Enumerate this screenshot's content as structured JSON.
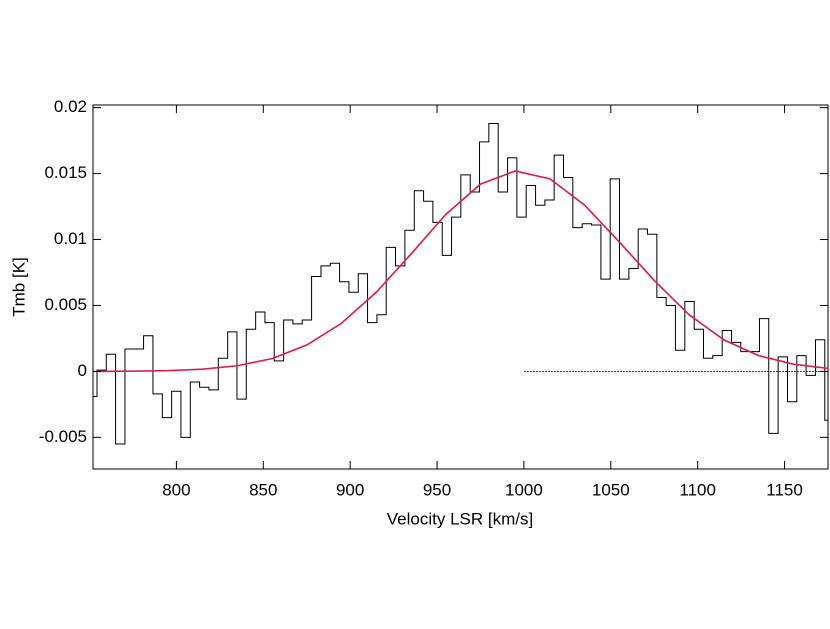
{
  "chart_data": {
    "type": "step",
    "x_label": "Velocity LSR [km/s]",
    "y_label": "Tmb [K]",
    "xlim": [
      752,
      1175
    ],
    "ylim": [
      -0.0074,
      0.0202
    ],
    "xticks": [
      800,
      850,
      900,
      950,
      1000,
      1050,
      1100,
      1150
    ],
    "yticks": [
      -0.005,
      0,
      0.005,
      0.01,
      0.015,
      0.02
    ],
    "series": [
      {
        "type": "step",
        "color": "#000000",
        "x": [
          751.6,
          757.0,
          762.3,
          767.7,
          773.1,
          778.4,
          783.8,
          789.2,
          794.6,
          799.9,
          805.3,
          810.7,
          816.0,
          821.4,
          826.8,
          832.2,
          837.5,
          842.9,
          848.3,
          853.6,
          859.0,
          864.4,
          869.7,
          875.1,
          880.5,
          885.9,
          891.2,
          896.6,
          902.0,
          907.3,
          912.7,
          918.1,
          923.4,
          928.8,
          934.2,
          939.6,
          944.9,
          950.3,
          955.7,
          961.0,
          966.4,
          971.8,
          977.1,
          982.5,
          987.9,
          993.3,
          998.6,
          1004.0,
          1009.4,
          1014.7,
          1020.1,
          1025.5,
          1030.8,
          1036.2,
          1041.6,
          1047.0,
          1052.3,
          1057.7,
          1063.1,
          1068.4,
          1073.8,
          1079.2,
          1084.5,
          1089.9,
          1095.3,
          1100.7,
          1106.0,
          1111.4,
          1116.8,
          1122.1,
          1127.5,
          1132.9,
          1138.2,
          1143.6,
          1149.0,
          1154.4,
          1159.7,
          1165.1,
          1170.5,
          1175.8
        ],
        "values": [
          -0.0019,
          0.0001,
          0.0013,
          -0.0055,
          0.0017,
          0.0017,
          0.0027,
          -0.0017,
          -0.0035,
          -0.0015,
          -0.005,
          -0.0008,
          -0.0012,
          -0.0014,
          0.001,
          0.003,
          -0.0021,
          0.0032,
          0.0045,
          0.0037,
          0.0008,
          0.0039,
          0.0036,
          0.0039,
          0.0072,
          0.008,
          0.0082,
          0.0068,
          0.006,
          0.0074,
          0.0037,
          0.0043,
          0.0094,
          0.008,
          0.0107,
          0.0137,
          0.0129,
          0.0113,
          0.0088,
          0.0117,
          0.0149,
          0.0136,
          0.0174,
          0.0188,
          0.0136,
          0.0162,
          0.0117,
          0.0141,
          0.0126,
          0.013,
          0.0164,
          0.0147,
          0.0109,
          0.0112,
          0.0111,
          0.007,
          0.0146,
          0.007,
          0.0078,
          0.0108,
          0.0104,
          0.0056,
          0.005,
          0.0016,
          0.0053,
          0.0032,
          0.001,
          0.0012,
          0.0031,
          0.0022,
          0.0015,
          0.0015,
          0.004,
          -0.0047,
          0.0011,
          -0.0023,
          0.0012,
          -0.0003,
          0.0024,
          -0.0037
        ]
      },
      {
        "type": "line",
        "color": "#e8174a",
        "x": [
          755,
          775,
          795,
          815,
          835,
          855,
          875,
          895,
          915,
          935,
          955,
          975,
          995,
          1015,
          1035,
          1055,
          1075,
          1095,
          1115,
          1135,
          1155,
          1175
        ],
        "values": [
          0.0,
          2e-05,
          6e-05,
          0.00017,
          0.00043,
          0.00097,
          0.002,
          0.00365,
          0.006,
          0.0089,
          0.0119,
          0.0142,
          0.0152,
          0.0146,
          0.0126,
          0.0098,
          0.0069,
          0.0043,
          0.0024,
          0.0012,
          0.00055,
          0.00023
        ]
      }
    ],
    "baseline": {
      "x": [
        1000,
        1175
      ],
      "value": 0
    }
  }
}
